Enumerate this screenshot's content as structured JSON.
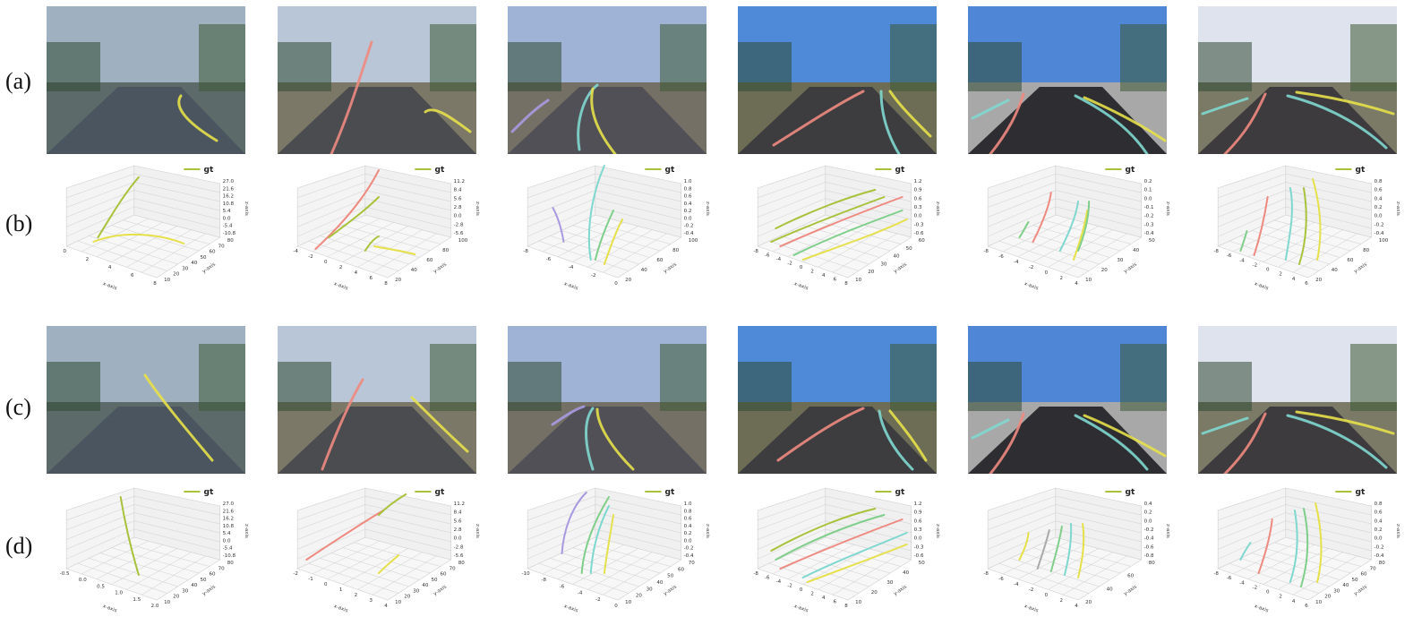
{
  "row_labels": [
    "(a)",
    "(b)",
    "(c)",
    "(d)"
  ],
  "legend_label": "gt",
  "axis_labels": {
    "x": "x-axis",
    "y": "y-axis",
    "z": "z-axis"
  },
  "colors": {
    "yellow": "#e6e04a",
    "olive": "#a8c23a",
    "salmon": "#ee8a80",
    "cyan": "#7fd8d0",
    "purple": "#a99ae0",
    "green": "#7fcf8a",
    "gray": "#aaaaaa"
  },
  "scenes": [
    {
      "sky": "#9fb1c0",
      "road": "#4a5560",
      "side": "#5d6a6a"
    },
    {
      "sky": "#b9c6d8",
      "road": "#4a4c50",
      "side": "#7b7868"
    },
    {
      "sky": "#9fb3d6",
      "road": "#505056",
      "side": "#757066"
    },
    {
      "sky": "#4f8ad8",
      "road": "#3d3d40",
      "side": "#6d6d55"
    },
    {
      "sky": "#4f86d6",
      "road": "#2e2e32",
      "side": "#a8a8a8"
    },
    {
      "sky": "#dfe3ee",
      "road": "#3d3b3d",
      "side": "#7a7a66"
    }
  ],
  "plots_b": [
    {
      "x_ticks": [
        "0",
        "2",
        "4",
        "6",
        "8"
      ],
      "y_ticks": [
        "10",
        "20",
        "30",
        "40",
        "50",
        "60",
        "70",
        "80"
      ],
      "z_ticks": [
        "27.0",
        "21.6",
        "16.2",
        "10.8",
        "5.4",
        "0.0",
        "-5.4",
        "-10.8"
      ]
    },
    {
      "x_ticks": [
        "-4",
        "-2",
        "0",
        "2",
        "4",
        "6",
        "8"
      ],
      "y_ticks": [
        "20",
        "40",
        "60",
        "80",
        "100"
      ],
      "z_ticks": [
        "11.2",
        "8.4",
        "5.6",
        "2.8",
        "0.0",
        "-2.8",
        "-5.6"
      ]
    },
    {
      "x_ticks": [
        "-8",
        "-6",
        "-4",
        "-2",
        "0"
      ],
      "y_ticks": [
        "20",
        "40",
        "60",
        "80",
        "100"
      ],
      "z_ticks": [
        "1.0",
        "0.8",
        "0.6",
        "0.4",
        "0.2",
        "0.0",
        "-0.2",
        "-0.4"
      ]
    },
    {
      "x_ticks": [
        "-8",
        "-6",
        "-4",
        "-2",
        "0",
        "2",
        "4",
        "6",
        "8"
      ],
      "y_ticks": [
        "10",
        "20",
        "30",
        "40",
        "50",
        "60"
      ],
      "z_ticks": [
        "1.2",
        "0.9",
        "0.6",
        "0.3",
        "0.0",
        "-0.3",
        "-0.6"
      ]
    },
    {
      "x_ticks": [
        "-8",
        "-6",
        "-4",
        "-2",
        "0",
        "2",
        "4"
      ],
      "y_ticks": [
        "10",
        "20",
        "30",
        "40",
        "50"
      ],
      "z_ticks": [
        "0.2",
        "0.1",
        "0.0",
        "-0.1",
        "-0.2",
        "-0.3",
        "-0.4"
      ]
    },
    {
      "x_ticks": [
        "-8",
        "-6",
        "-4",
        "-2",
        "0",
        "2",
        "4",
        "6"
      ],
      "y_ticks": [
        "20",
        "40",
        "60",
        "80",
        "100"
      ],
      "z_ticks": [
        "0.8",
        "0.6",
        "0.4",
        "0.2",
        "0.0",
        "-0.2",
        "-0.4"
      ]
    }
  ],
  "plots_d": [
    {
      "x_ticks": [
        "-0.5",
        "0.0",
        "0.5",
        "1.0",
        "1.5",
        "2.0"
      ],
      "y_ticks": [
        "10",
        "20",
        "30",
        "40",
        "50",
        "60",
        "70",
        "80"
      ],
      "z_ticks": [
        "27.0",
        "21.6",
        "16.2",
        "10.8",
        "5.4",
        "0.0",
        "-5.4",
        "-10.8"
      ]
    },
    {
      "x_ticks": [
        "-2",
        "-1",
        "0",
        "1",
        "2",
        "3",
        "4"
      ],
      "y_ticks": [
        "10",
        "20",
        "30",
        "40",
        "50",
        "60",
        "70",
        "80"
      ],
      "z_ticks": [
        "11.2",
        "8.4",
        "5.6",
        "2.8",
        "0.0",
        "-2.8",
        "-5.6"
      ]
    },
    {
      "x_ticks": [
        "-10",
        "-8",
        "-6",
        "-4",
        "-2",
        "0"
      ],
      "y_ticks": [
        "10",
        "20",
        "30",
        "40",
        "50",
        "60",
        "70"
      ],
      "z_ticks": [
        "1.0",
        "0.8",
        "0.6",
        "0.4",
        "0.2",
        "0.0",
        "-0.2",
        "-0.4"
      ]
    },
    {
      "x_ticks": [
        "-8",
        "-6",
        "-4",
        "-2",
        "0",
        "2",
        "4",
        "6",
        "8"
      ],
      "y_ticks": [
        "10",
        "20",
        "30",
        "40",
        "50"
      ],
      "z_ticks": [
        "1.2",
        "0.9",
        "0.6",
        "0.3",
        "0.0",
        "-0.3",
        "-0.6"
      ]
    },
    {
      "x_ticks": [
        "-8",
        "-6",
        "-4",
        "-2",
        "0",
        "2",
        "4"
      ],
      "y_ticks": [
        "20",
        "40",
        "60",
        "80"
      ],
      "z_ticks": [
        "0.4",
        "0.2",
        "0.0",
        "-0.2",
        "-0.4",
        "-0.6",
        "-0.8"
      ]
    },
    {
      "x_ticks": [
        "-8",
        "-6",
        "-4",
        "-2",
        "0",
        "2",
        "4",
        "6"
      ],
      "y_ticks": [
        "10",
        "20",
        "30",
        "40",
        "50",
        "60",
        "70",
        "80"
      ],
      "z_ticks": [
        "0.8",
        "0.6",
        "0.4",
        "0.2",
        "0.0",
        "-0.2",
        "-0.4"
      ]
    }
  ]
}
